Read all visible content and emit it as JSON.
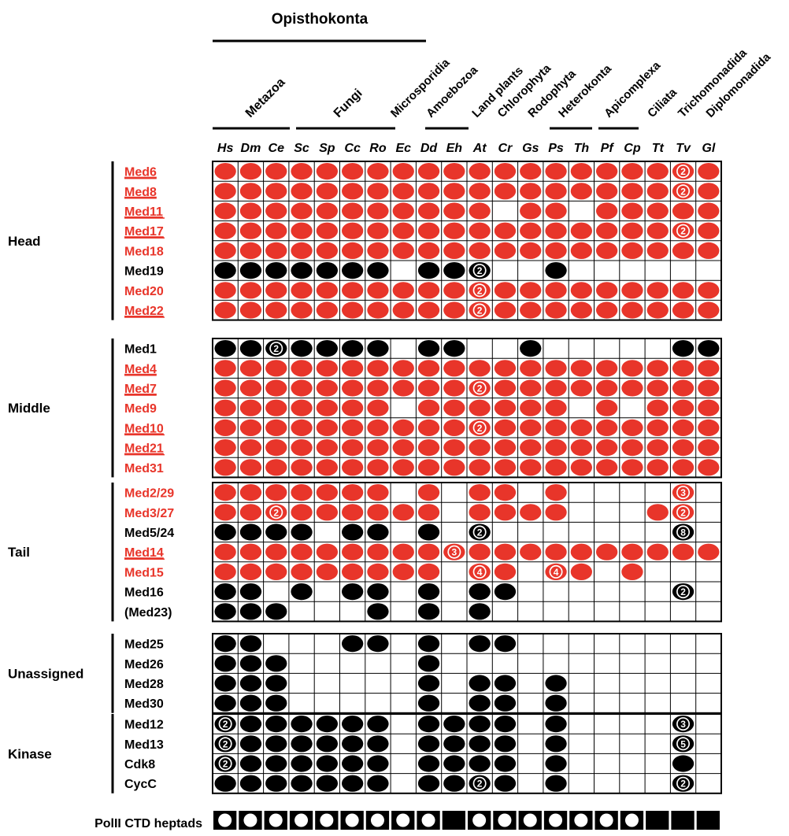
{
  "taxonomy": {
    "top_groups": [
      {
        "label": "Opisthokonta"
      }
    ],
    "sub_groups": [
      {
        "label": "Metazoa"
      },
      {
        "label": "Fungi"
      }
    ],
    "clades": [
      {
        "label": "Microsporidia"
      },
      {
        "label": "Amoebozoa"
      },
      {
        "label": "Land plants"
      },
      {
        "label": "Chlorophyta"
      },
      {
        "label": "Rodophyta"
      },
      {
        "label": "Heterokonta"
      },
      {
        "label": "Apicomplexa"
      },
      {
        "label": "Ciliata"
      },
      {
        "label": "Trichomonadida"
      },
      {
        "label": "Diplomonadida"
      }
    ]
  },
  "species": [
    "Hs",
    "Dm",
    "Ce",
    "Sc",
    "Sp",
    "Cc",
    "Ro",
    "Ec",
    "Dd",
    "Eh",
    "At",
    "Cr",
    "Gs",
    "Ps",
    "Th",
    "Pf",
    "Cp",
    "Tt",
    "Tv",
    "Gl"
  ],
  "colors": {
    "red": "#e8352a",
    "black": "#000000",
    "grid": "#000000"
  },
  "modules": [
    {
      "label": "Head",
      "rows": [
        {
          "name": "Med6",
          "color": "red",
          "underline": true,
          "cells": [
            "r",
            "r",
            "r",
            "r",
            "r",
            "r",
            "r",
            "r",
            "r",
            "r",
            "r",
            "r",
            "r",
            "r",
            "r",
            "r",
            "r",
            "r",
            "r2",
            "r"
          ]
        },
        {
          "name": "Med8",
          "color": "red",
          "underline": true,
          "cells": [
            "r",
            "r",
            "r",
            "r",
            "r",
            "r",
            "r",
            "r",
            "r",
            "r",
            "r",
            "r",
            "r",
            "r",
            "r",
            "r",
            "r",
            "r",
            "r2",
            "r"
          ]
        },
        {
          "name": "Med11",
          "color": "red",
          "underline": true,
          "cells": [
            "r",
            "r",
            "r",
            "r",
            "r",
            "r",
            "r",
            "r",
            "r",
            "r",
            "r",
            "",
            "r",
            "r",
            "",
            "r",
            "r",
            "r",
            "r",
            "r"
          ]
        },
        {
          "name": "Med17",
          "color": "red",
          "underline": true,
          "cells": [
            "r",
            "r",
            "r",
            "r",
            "r",
            "r",
            "r",
            "r",
            "r",
            "r",
            "r",
            "r",
            "r",
            "r",
            "r",
            "r",
            "r",
            "r",
            "r2",
            "r"
          ]
        },
        {
          "name": "Med18",
          "color": "red",
          "underline": false,
          "cells": [
            "r",
            "r",
            "r",
            "r",
            "r",
            "r",
            "r",
            "r",
            "r",
            "r",
            "r",
            "r",
            "r",
            "r",
            "r",
            "r",
            "r",
            "r",
            "r",
            "r"
          ]
        },
        {
          "name": "Med19",
          "color": "black",
          "underline": false,
          "cells": [
            "b",
            "b",
            "b",
            "b",
            "b",
            "b",
            "b",
            "",
            "b",
            "b",
            "b2",
            "",
            "",
            "b",
            "",
            "",
            "",
            "",
            "",
            ""
          ]
        },
        {
          "name": "Med20",
          "color": "red",
          "underline": false,
          "cells": [
            "r",
            "r",
            "r",
            "r",
            "r",
            "r",
            "r",
            "r",
            "r",
            "r",
            "r2",
            "r",
            "r",
            "r",
            "r",
            "r",
            "r",
            "r",
            "r",
            "r"
          ]
        },
        {
          "name": "Med22",
          "color": "red",
          "underline": true,
          "cells": [
            "r",
            "r",
            "r",
            "r",
            "r",
            "r",
            "r",
            "r",
            "r",
            "r",
            "r2",
            "r",
            "r",
            "r",
            "r",
            "r",
            "r",
            "r",
            "r",
            "r"
          ]
        }
      ]
    },
    {
      "label": "Middle",
      "rows": [
        {
          "name": "Med1",
          "color": "black",
          "underline": false,
          "cells": [
            "b",
            "b",
            "b2",
            "b",
            "b",
            "b",
            "b",
            "",
            "b",
            "b",
            "",
            "",
            "b",
            "",
            "",
            "",
            "",
            "",
            "b",
            "b"
          ]
        },
        {
          "name": "Med4",
          "color": "red",
          "underline": true,
          "cells": [
            "r",
            "r",
            "r",
            "r",
            "r",
            "r",
            "r",
            "r",
            "r",
            "r",
            "r",
            "r",
            "r",
            "r",
            "r",
            "r",
            "r",
            "r",
            "r",
            "r"
          ]
        },
        {
          "name": "Med7",
          "color": "red",
          "underline": true,
          "cells": [
            "r",
            "r",
            "r",
            "r",
            "r",
            "r",
            "r",
            "r",
            "r",
            "r",
            "r2",
            "r",
            "r",
            "r",
            "r",
            "r",
            "r",
            "r",
            "r",
            "r"
          ]
        },
        {
          "name": "Med9",
          "color": "red",
          "underline": false,
          "cells": [
            "r",
            "r",
            "r",
            "r",
            "r",
            "r",
            "r",
            "",
            "r",
            "r",
            "r",
            "r",
            "r",
            "r",
            "",
            "r",
            "",
            "r",
            "r",
            "r"
          ]
        },
        {
          "name": "Med10",
          "color": "red",
          "underline": true,
          "cells": [
            "r",
            "r",
            "r",
            "r",
            "r",
            "r",
            "r",
            "r",
            "r",
            "r",
            "r2",
            "r",
            "r",
            "r",
            "r",
            "r",
            "r",
            "r",
            "r",
            "r"
          ]
        },
        {
          "name": "Med21",
          "color": "red",
          "underline": true,
          "cells": [
            "r",
            "r",
            "r",
            "r",
            "r",
            "r",
            "r",
            "r",
            "r",
            "r",
            "r",
            "r",
            "r",
            "r",
            "r",
            "r",
            "r",
            "r",
            "r",
            "r"
          ]
        },
        {
          "name": "Med31",
          "color": "red",
          "underline": false,
          "cells": [
            "r",
            "r",
            "r",
            "r",
            "r",
            "r",
            "r",
            "r",
            "r",
            "r",
            "r",
            "r",
            "r",
            "r",
            "r",
            "r",
            "r",
            "r",
            "r",
            "r"
          ]
        }
      ]
    },
    {
      "label": "Tail",
      "rows": [
        {
          "name": "Med2/29",
          "color": "red",
          "underline": false,
          "cells": [
            "r",
            "r",
            "r",
            "r",
            "r",
            "r",
            "r",
            "",
            "r",
            "",
            "r",
            "r",
            "",
            "r",
            "",
            "",
            "",
            "",
            "r3",
            ""
          ]
        },
        {
          "name": "Med3/27",
          "color": "red",
          "underline": false,
          "cells": [
            "r",
            "r",
            "r2",
            "r",
            "r",
            "r",
            "r",
            "r",
            "r",
            "",
            "r",
            "r",
            "r",
            "r",
            "",
            "",
            "",
            "r",
            "r2",
            ""
          ]
        },
        {
          "name": "Med5/24",
          "color": "black",
          "underline": false,
          "cells": [
            "b",
            "b",
            "b",
            "b",
            "",
            "b",
            "b",
            "",
            "b",
            "",
            "b2",
            "",
            "",
            "",
            "",
            "",
            "",
            "",
            "b8",
            ""
          ]
        },
        {
          "name": "Med14",
          "color": "red",
          "underline": true,
          "cells": [
            "r",
            "r",
            "r",
            "r",
            "r",
            "r",
            "r",
            "r",
            "r",
            "r3",
            "r",
            "r",
            "r",
            "r",
            "r",
            "r",
            "r",
            "r",
            "r",
            "r"
          ]
        },
        {
          "name": "Med15",
          "color": "red",
          "underline": false,
          "cells": [
            "r",
            "r",
            "r",
            "r",
            "r",
            "r",
            "r",
            "r",
            "r",
            "",
            "r4",
            "r",
            "",
            "r4",
            "r",
            "",
            "r",
            "",
            "",
            ""
          ]
        },
        {
          "name": "Med16",
          "color": "black",
          "underline": false,
          "cells": [
            "b",
            "b",
            "",
            "b",
            "",
            "b",
            "b",
            "",
            "b",
            "",
            "b",
            "b",
            "",
            "",
            "",
            "",
            "",
            "",
            "b2",
            ""
          ]
        },
        {
          "name": "(Med23)",
          "color": "black",
          "underline": false,
          "cells": [
            "b",
            "b",
            "b",
            "",
            "",
            "",
            "b",
            "",
            "b",
            "",
            "b",
            "",
            "",
            "",
            "",
            "",
            "",
            "",
            "",
            ""
          ]
        }
      ]
    },
    {
      "label": "Unassigned",
      "rows": [
        {
          "name": "Med25",
          "color": "black",
          "underline": false,
          "cells": [
            "b",
            "b",
            "",
            "",
            "",
            "b",
            "b",
            "",
            "b",
            "",
            "b",
            "b",
            "",
            "",
            "",
            "",
            "",
            "",
            "",
            ""
          ]
        },
        {
          "name": "Med26",
          "color": "black",
          "underline": false,
          "cells": [
            "b",
            "b",
            "b",
            "",
            "",
            "",
            "",
            "",
            "b",
            "",
            "",
            "",
            "",
            "",
            "",
            "",
            "",
            "",
            "",
            ""
          ]
        },
        {
          "name": "Med28",
          "color": "black",
          "underline": false,
          "cells": [
            "b",
            "b",
            "b",
            "",
            "",
            "",
            "",
            "",
            "b",
            "",
            "b",
            "b",
            "",
            "b",
            "",
            "",
            "",
            "",
            "",
            ""
          ]
        },
        {
          "name": "Med30",
          "color": "black",
          "underline": false,
          "cells": [
            "b",
            "b",
            "b",
            "",
            "",
            "",
            "",
            "",
            "b",
            "",
            "b",
            "b",
            "",
            "b",
            "",
            "",
            "",
            "",
            "",
            ""
          ]
        }
      ]
    },
    {
      "label": "Kinase",
      "rows": [
        {
          "name": "Med12",
          "color": "black",
          "underline": false,
          "cells": [
            "b2",
            "b",
            "b",
            "b",
            "b",
            "b",
            "b",
            "",
            "b",
            "b",
            "b",
            "b",
            "",
            "b",
            "",
            "",
            "",
            "",
            "b3",
            ""
          ]
        },
        {
          "name": "Med13",
          "color": "black",
          "underline": false,
          "cells": [
            "b2",
            "b",
            "b",
            "b",
            "b",
            "b",
            "b",
            "",
            "b",
            "b",
            "b",
            "b",
            "",
            "b",
            "",
            "",
            "",
            "",
            "b5",
            ""
          ]
        },
        {
          "name": "Cdk8",
          "color": "black",
          "underline": false,
          "cells": [
            "b2",
            "b",
            "b",
            "b",
            "b",
            "b",
            "b",
            "",
            "b",
            "b",
            "b",
            "b",
            "",
            "b",
            "",
            "",
            "",
            "",
            "b",
            ""
          ]
        },
        {
          "name": "CycC",
          "color": "black",
          "underline": false,
          "cells": [
            "b",
            "b",
            "b",
            "b",
            "b",
            "b",
            "b",
            "",
            "b",
            "b",
            "b2",
            "b",
            "",
            "b",
            "",
            "",
            "",
            "",
            "b2",
            ""
          ]
        }
      ]
    }
  ],
  "ctd": {
    "label": "PolII CTD heptads",
    "cells": [
      "o",
      "o",
      "o",
      "o",
      "o",
      "o",
      "o",
      "o",
      "o",
      "s",
      "o",
      "o",
      "o",
      "o",
      "o",
      "o",
      "o",
      "s",
      "s",
      "s"
    ]
  }
}
